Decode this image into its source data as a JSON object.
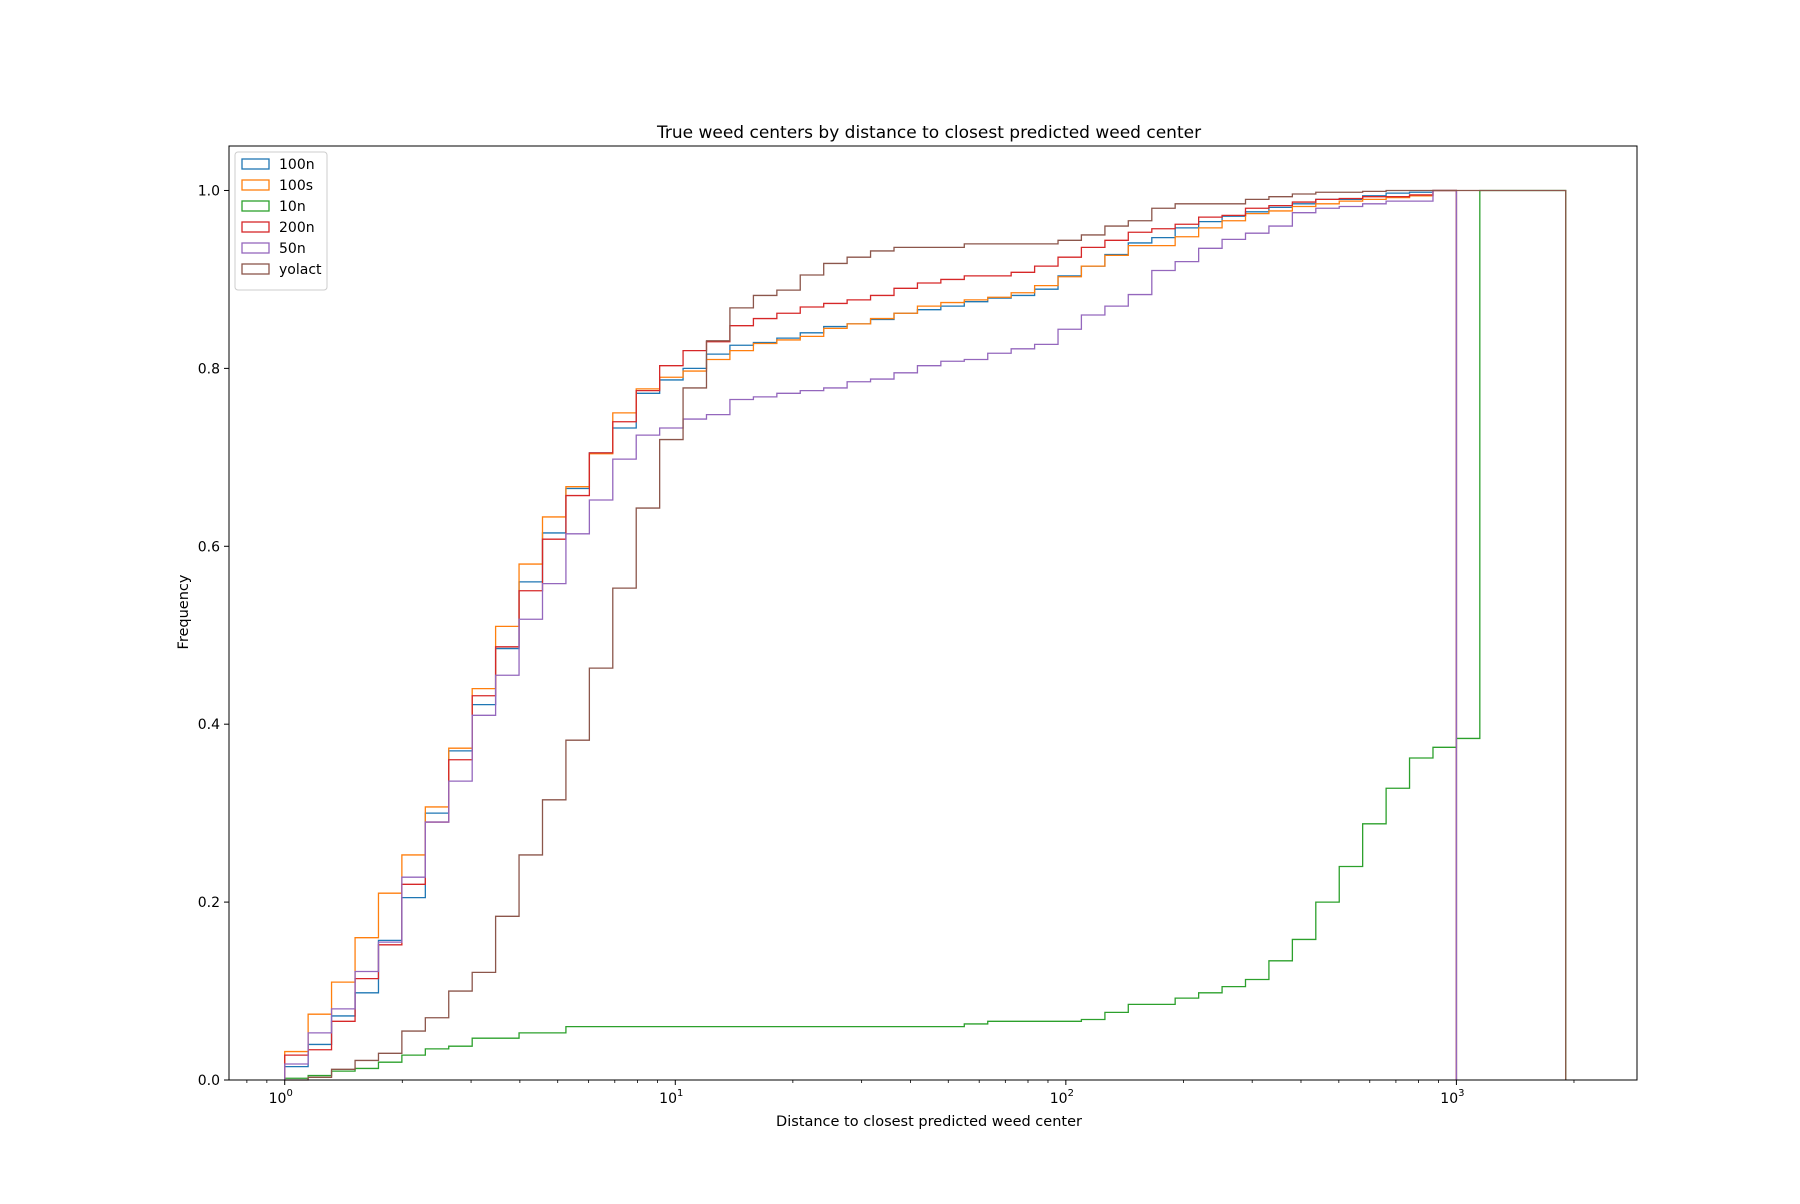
{
  "chart_data": {
    "type": "step",
    "title": "True weed centers by distance to closest predicted weed center",
    "xlabel": "Distance to closest predicted weed center",
    "ylabel": "Frequency",
    "x_scale": "log",
    "xlim": [
      0.72,
      2900
    ],
    "ylim": [
      0.0,
      1.05
    ],
    "x_ticks": [
      {
        "value": 1,
        "base": "10",
        "exp": "0"
      },
      {
        "value": 10,
        "base": "10",
        "exp": "1"
      },
      {
        "value": 100,
        "base": "10",
        "exp": "2"
      },
      {
        "value": 1000,
        "base": "10",
        "exp": "3"
      }
    ],
    "y_ticks": [
      {
        "value": 0.0,
        "label": "0.0"
      },
      {
        "value": 0.2,
        "label": "0.2"
      },
      {
        "value": 0.4,
        "label": "0.4"
      },
      {
        "value": 0.6,
        "label": "0.6"
      },
      {
        "value": 0.8,
        "label": "0.8"
      },
      {
        "value": 1.0,
        "label": "1.0"
      }
    ],
    "grid": false,
    "legend_position": "top-left",
    "bin_edges": [
      1.0,
      1.148,
      1.318,
      1.514,
      1.738,
      1.995,
      2.291,
      2.63,
      3.02,
      3.467,
      3.981,
      4.571,
      5.248,
      6.026,
      6.918,
      7.943,
      9.12,
      10.47,
      12.02,
      13.8,
      15.85,
      18.2,
      20.89,
      23.99,
      27.54,
      31.62,
      36.31,
      41.69,
      47.86,
      54.95,
      63.1,
      72.44,
      83.18,
      95.5,
      109.6,
      125.9,
      144.5,
      166.0,
      190.5,
      218.8,
      251.2,
      288.4,
      331.1,
      380.2,
      436.5,
      501.2,
      575.4,
      660.7,
      758.6,
      871.0,
      1000.0,
      1148.0,
      1318.0,
      1514.0,
      1738.0,
      1905.0
    ],
    "series": [
      {
        "name": "100n",
        "color": "#1f77b4",
        "values": [
          0.015,
          0.04,
          0.072,
          0.098,
          0.157,
          0.205,
          0.3,
          0.37,
          0.422,
          0.485,
          0.56,
          0.615,
          0.665,
          0.705,
          0.733,
          0.772,
          0.787,
          0.8,
          0.816,
          0.826,
          0.829,
          0.834,
          0.84,
          0.847,
          0.85,
          0.855,
          0.862,
          0.866,
          0.87,
          0.875,
          0.879,
          0.882,
          0.889,
          0.904,
          0.915,
          0.928,
          0.941,
          0.947,
          0.958,
          0.965,
          0.971,
          0.976,
          0.981,
          0.985,
          0.99,
          0.99,
          0.994,
          0.997,
          0.998,
          1.0
        ]
      },
      {
        "name": "100s",
        "color": "#ff7f0e",
        "values": [
          0.032,
          0.074,
          0.11,
          0.16,
          0.21,
          0.253,
          0.307,
          0.373,
          0.44,
          0.51,
          0.58,
          0.633,
          0.667,
          0.704,
          0.75,
          0.777,
          0.79,
          0.797,
          0.81,
          0.82,
          0.828,
          0.832,
          0.836,
          0.845,
          0.85,
          0.856,
          0.862,
          0.87,
          0.874,
          0.877,
          0.88,
          0.885,
          0.893,
          0.903,
          0.915,
          0.927,
          0.938,
          0.938,
          0.948,
          0.958,
          0.966,
          0.974,
          0.977,
          0.982,
          0.985,
          0.988,
          0.99,
          0.992,
          0.994,
          1.0
        ]
      },
      {
        "name": "10n",
        "color": "#2ca02c",
        "values": [
          0.002,
          0.005,
          0.01,
          0.013,
          0.02,
          0.028,
          0.035,
          0.038,
          0.047,
          0.047,
          0.053,
          0.053,
          0.06,
          0.06,
          0.06,
          0.06,
          0.06,
          0.06,
          0.06,
          0.06,
          0.06,
          0.06,
          0.06,
          0.06,
          0.06,
          0.06,
          0.06,
          0.06,
          0.06,
          0.063,
          0.066,
          0.066,
          0.066,
          0.066,
          0.068,
          0.076,
          0.085,
          0.085,
          0.092,
          0.098,
          0.105,
          0.113,
          0.134,
          0.158,
          0.2,
          0.24,
          0.288,
          0.328,
          0.362,
          0.374,
          0.384,
          1.0,
          1.0,
          1.0,
          1.0
        ]
      },
      {
        "name": "200n",
        "color": "#d62728",
        "values": [
          0.028,
          0.034,
          0.066,
          0.114,
          0.152,
          0.22,
          0.29,
          0.36,
          0.432,
          0.487,
          0.55,
          0.608,
          0.657,
          0.705,
          0.74,
          0.775,
          0.803,
          0.82,
          0.83,
          0.848,
          0.856,
          0.862,
          0.869,
          0.873,
          0.877,
          0.882,
          0.89,
          0.896,
          0.9,
          0.904,
          0.904,
          0.908,
          0.915,
          0.925,
          0.936,
          0.944,
          0.953,
          0.957,
          0.962,
          0.97,
          0.972,
          0.98,
          0.983,
          0.987,
          0.99,
          0.991,
          0.993,
          0.993,
          0.995,
          1.0
        ]
      },
      {
        "name": "50n",
        "color": "#9467bd",
        "values": [
          0.018,
          0.053,
          0.08,
          0.122,
          0.155,
          0.228,
          0.29,
          0.336,
          0.41,
          0.455,
          0.518,
          0.558,
          0.614,
          0.652,
          0.698,
          0.725,
          0.733,
          0.743,
          0.748,
          0.765,
          0.768,
          0.772,
          0.775,
          0.778,
          0.785,
          0.788,
          0.795,
          0.803,
          0.808,
          0.81,
          0.817,
          0.822,
          0.827,
          0.844,
          0.86,
          0.87,
          0.883,
          0.91,
          0.92,
          0.935,
          0.945,
          0.952,
          0.96,
          0.975,
          0.98,
          0.982,
          0.985,
          0.988,
          0.988,
          1.0
        ]
      },
      {
        "name": "yolact",
        "color": "#8c564b",
        "values": [
          0.0,
          0.003,
          0.012,
          0.022,
          0.03,
          0.055,
          0.07,
          0.1,
          0.121,
          0.184,
          0.253,
          0.315,
          0.382,
          0.463,
          0.553,
          0.643,
          0.72,
          0.778,
          0.831,
          0.868,
          0.882,
          0.888,
          0.905,
          0.918,
          0.925,
          0.932,
          0.936,
          0.936,
          0.936,
          0.94,
          0.94,
          0.94,
          0.94,
          0.944,
          0.95,
          0.96,
          0.966,
          0.98,
          0.985,
          0.985,
          0.985,
          0.99,
          0.993,
          0.996,
          0.998,
          0.998,
          0.999,
          1.0,
          1.0,
          1.0,
          1.0,
          1.0,
          1.0,
          1.0,
          1.0
        ]
      }
    ]
  }
}
